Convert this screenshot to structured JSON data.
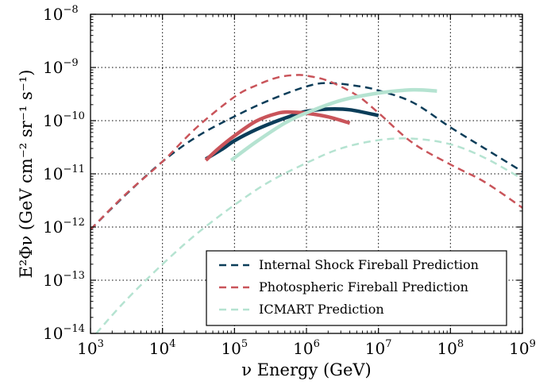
{
  "chart_data": {
    "type": "line",
    "title": "",
    "xlabel": "ν Energy (GeV)",
    "ylabel": "E²Φν (GeV cm⁻² sr⁻¹ s⁻¹)",
    "x_scale": "log",
    "y_scale": "log",
    "xlim": [
      1000,
      1000000000
    ],
    "ylim": [
      1e-14,
      1e-08
    ],
    "grid": true,
    "legend_position": "bottom-right",
    "x_ticks": [
      {
        "value": 1000,
        "base": "10",
        "exp": "3"
      },
      {
        "value": 10000,
        "base": "10",
        "exp": "4"
      },
      {
        "value": 100000,
        "base": "10",
        "exp": "5"
      },
      {
        "value": 1000000,
        "base": "10",
        "exp": "6"
      },
      {
        "value": 10000000,
        "base": "10",
        "exp": "7"
      },
      {
        "value": 100000000,
        "base": "10",
        "exp": "8"
      },
      {
        "value": 1000000000,
        "base": "10",
        "exp": "9"
      }
    ],
    "y_ticks": [
      {
        "value": 1e-14,
        "base": "10",
        "exp": "−14"
      },
      {
        "value": 1e-13,
        "base": "10",
        "exp": "−13"
      },
      {
        "value": 1e-12,
        "base": "10",
        "exp": "−12"
      },
      {
        "value": 1e-11,
        "base": "10",
        "exp": "−11"
      },
      {
        "value": 1e-10,
        "base": "10",
        "exp": "−10"
      },
      {
        "value": 1e-09,
        "base": "10",
        "exp": "−9"
      },
      {
        "value": 1e-08,
        "base": "10",
        "exp": "−8"
      }
    ],
    "series": [
      {
        "name": "Internal Shock Fireball Prediction",
        "style": "dashed",
        "color": "#0b3d59",
        "in_legend": true,
        "x": [
          1000,
          3000,
          10000,
          30000,
          100000,
          300000,
          1000000,
          2000000,
          5000000,
          10000000,
          30000000,
          100000000,
          300000000,
          1000000000
        ],
        "y": [
          9e-13,
          3.9e-12,
          1.7e-11,
          5e-11,
          1.2e-10,
          2.4e-10,
          4.4e-10,
          5.1e-10,
          4.5e-10,
          3.7e-10,
          2.2e-10,
          7.5e-11,
          3e-11,
          1.1e-11
        ]
      },
      {
        "name": "Photospheric Fireball Prediction",
        "style": "dashed",
        "color": "#c9545a",
        "in_legend": true,
        "x": [
          1000,
          3000,
          10000,
          30000,
          100000,
          200000,
          400000,
          700000,
          1000000,
          2000000,
          5000000,
          10000000,
          30000000,
          100000000,
          300000000,
          1000000000
        ],
        "y": [
          9e-13,
          4e-12,
          1.7e-11,
          7.5e-11,
          2.8e-10,
          4.6e-10,
          6.5e-10,
          7.2e-10,
          7e-10,
          5.6e-10,
          3e-10,
          1.4e-10,
          3.8e-11,
          1.5e-11,
          7e-12,
          2.3e-12
        ]
      },
      {
        "name": "ICMART Prediction",
        "style": "dashed",
        "color": "#b5e3d1",
        "in_legend": true,
        "x": [
          1200,
          3000,
          10000,
          30000,
          100000,
          300000,
          1000000,
          3000000,
          10000000,
          30000000,
          100000000,
          300000000,
          1000000000
        ],
        "y": [
          1e-14,
          4e-14,
          2e-13,
          7.5e-13,
          2.6e-12,
          7e-12,
          1.6e-11,
          3e-11,
          4.3e-11,
          4.6e-11,
          3.6e-11,
          2e-11,
          8e-12
        ]
      },
      {
        "name": "",
        "style": "solid",
        "color": "#0b3d59",
        "in_legend": false,
        "x": [
          40000,
          70000,
          100000,
          200000,
          400000,
          700000,
          1000000,
          2000000,
          4000000,
          10000000
        ],
        "y": [
          1.9e-11,
          3e-11,
          4.2e-11,
          6.8e-11,
          1e-10,
          1.3e-10,
          1.5e-10,
          1.65e-10,
          1.6e-10,
          1.25e-10
        ]
      },
      {
        "name": "",
        "style": "solid",
        "color": "#c9545a",
        "in_legend": false,
        "x": [
          40000,
          60000,
          100000,
          200000,
          400000,
          600000,
          1000000,
          2000000,
          4000000
        ],
        "y": [
          1.8e-11,
          3e-11,
          5.2e-11,
          9.8e-11,
          1.38e-10,
          1.45e-10,
          1.38e-10,
          1.18e-10,
          9e-11
        ]
      },
      {
        "name": "",
        "style": "solid",
        "color": "#b5e3d1",
        "in_legend": false,
        "x": [
          90000,
          200000,
          500000,
          1000000,
          3000000,
          10000000,
          30000000,
          65000000
        ],
        "y": [
          1.8e-11,
          4e-11,
          9e-11,
          1.4e-10,
          2.4e-10,
          3.3e-10,
          3.8e-10,
          3.6e-10
        ]
      }
    ]
  }
}
